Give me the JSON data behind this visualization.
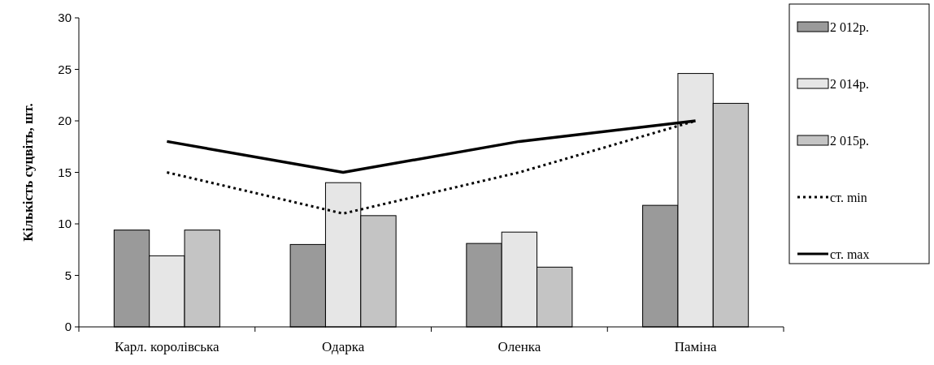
{
  "chart_data": {
    "type": "bar",
    "ylabel": "Кількість суцвіть, шт.",
    "categories": [
      "Карл. королівська",
      "Одарка",
      "Оленка",
      "Паміна"
    ],
    "series": [
      {
        "name": "2 012р.",
        "color": "#9a9a9a",
        "values": [
          9.4,
          8,
          8.1,
          11.8
        ]
      },
      {
        "name": "2 014р.",
        "color": "#e6e6e6",
        "values": [
          6.9,
          14,
          9.2,
          24.6
        ]
      },
      {
        "name": "2 015р.",
        "color": "#c4c4c4",
        "values": [
          9.4,
          10.8,
          5.8,
          21.7
        ]
      },
      {
        "name": "ст. min",
        "type": "line",
        "color": "#000000",
        "line_style": "dotted",
        "values": [
          15,
          11,
          15,
          20
        ]
      },
      {
        "name": "ст. max",
        "type": "line",
        "color": "#000000",
        "line_style": "solid",
        "values": [
          18,
          15,
          18,
          20
        ]
      }
    ],
    "ylim": [
      0,
      30
    ],
    "yticks": [
      0,
      5,
      10,
      15,
      20,
      25,
      30
    ],
    "grid": false,
    "legend": "right"
  }
}
